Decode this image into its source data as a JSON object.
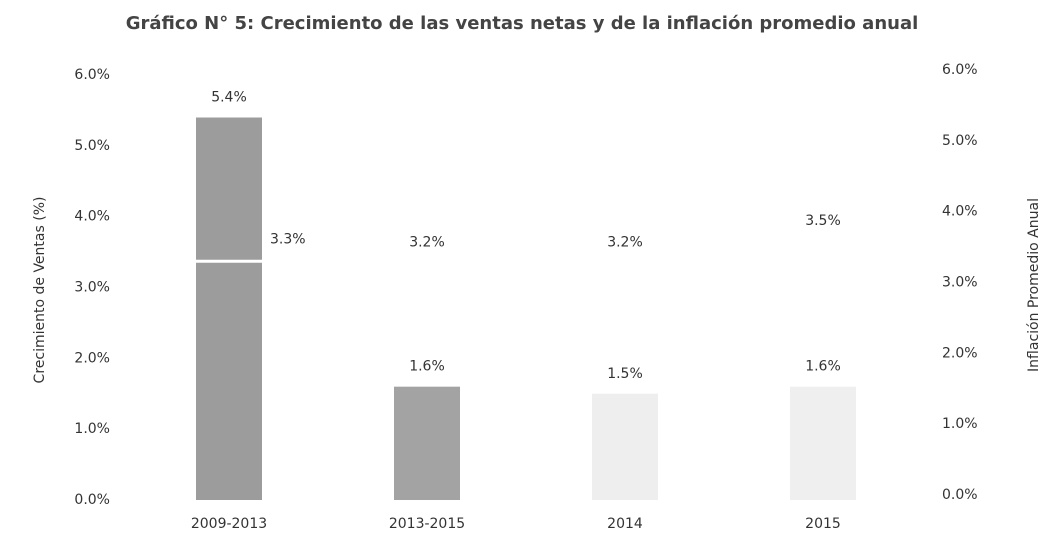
{
  "chart_data": {
    "type": "bar",
    "title": "Gráfico N° 5: Crecimiento de las ventas netas y de la inflación promedio anual",
    "y_label": "Crecimiento de Ventas (%)",
    "y2_label": "Inflación Promedio Anual",
    "categories": [
      "2009-2013",
      "2013-2015",
      "2014",
      "2015"
    ],
    "series": [
      {
        "colors": [
          "#9c9c9c",
          "#a3a3a3",
          "#eeeeee",
          "#efefef"
        ],
        "values": [
          5.4,
          1.6,
          1.5,
          1.6
        ],
        "value_labels": [
          "5.4%",
          "1.6%",
          "1.5%",
          "1.6%"
        ]
      },
      {
        "axis": "y2",
        "marker": "dash",
        "color": "#ffffff",
        "values": [
          3.3,
          3.2,
          3.2,
          3.5
        ],
        "value_labels": [
          "3.3%",
          "3.2%",
          "3.2%",
          "3.5%"
        ]
      }
    ],
    "ylim": [
      0,
      6
    ],
    "yticks": [
      {
        "value": 0,
        "label": "0.0%"
      },
      {
        "value": 1,
        "label": "1.0%"
      },
      {
        "value": 2,
        "label": "2.0%"
      },
      {
        "value": 3,
        "label": "3.0%"
      },
      {
        "value": 4,
        "label": "4.0%"
      },
      {
        "value": 5,
        "label": "5.0%"
      },
      {
        "value": 6,
        "label": "6.0%"
      }
    ],
    "y2lim": [
      0,
      6
    ],
    "y2ticks": [
      {
        "value": 0,
        "label": "0.0%"
      },
      {
        "value": 1,
        "label": "1.0%"
      },
      {
        "value": 2,
        "label": "2.0%"
      },
      {
        "value": 3,
        "label": "3.0%"
      },
      {
        "value": 4,
        "label": "4.0%"
      },
      {
        "value": 5,
        "label": "5.0%"
      },
      {
        "value": 6,
        "label": "6.0%"
      }
    ],
    "grid": false
  }
}
